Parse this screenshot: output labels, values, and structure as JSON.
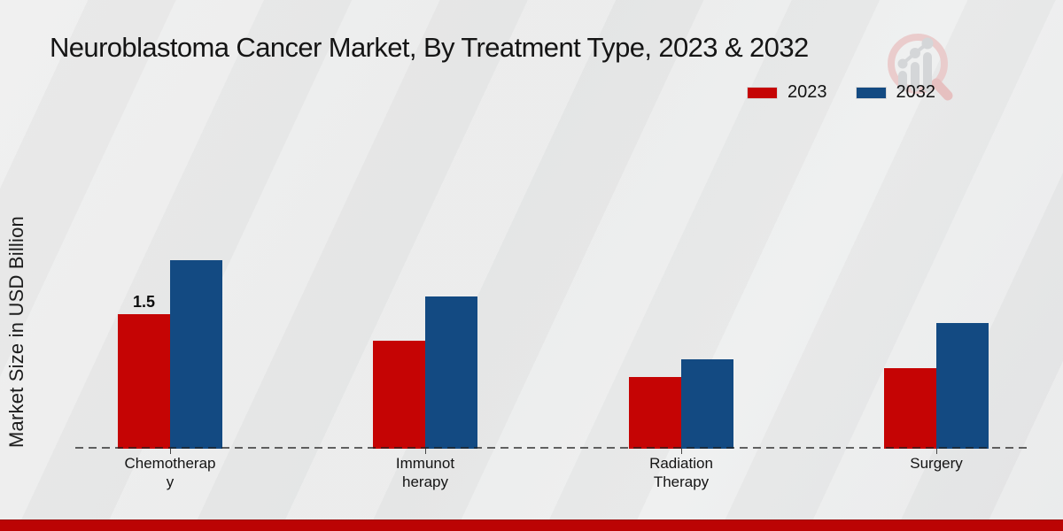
{
  "chart_data": {
    "type": "bar",
    "title": "Neuroblastoma Cancer Market, By Treatment Type, 2023 & 2032",
    "xlabel": "",
    "ylabel": "Market Size in USD Billion",
    "categories": [
      "Chemotherapy",
      "Immunotherapy",
      "Radiation Therapy",
      "Surgery"
    ],
    "category_label_lines": [
      [
        "Chemotherap",
        "y"
      ],
      [
        "Immunot",
        "herapy"
      ],
      [
        "Radiation",
        "Therapy"
      ],
      [
        "Surgery"
      ]
    ],
    "series": [
      {
        "name": "2023",
        "color": "#c50404",
        "values": [
          1.5,
          1.2,
          0.8,
          0.9
        ]
      },
      {
        "name": "2032",
        "color": "#134a82",
        "values": [
          2.1,
          1.7,
          1.0,
          1.4
        ]
      }
    ],
    "annotations": [
      {
        "series": "2023",
        "category": "Chemotherapy",
        "text": "1.5"
      }
    ],
    "legend_position": "top-right",
    "grid": false,
    "baseline_style": "dashed",
    "units": "USD Billion"
  },
  "footer": {
    "accent_color": "#bb0404"
  },
  "logo": {
    "name": "magnifier-bar-chart-watermark"
  }
}
